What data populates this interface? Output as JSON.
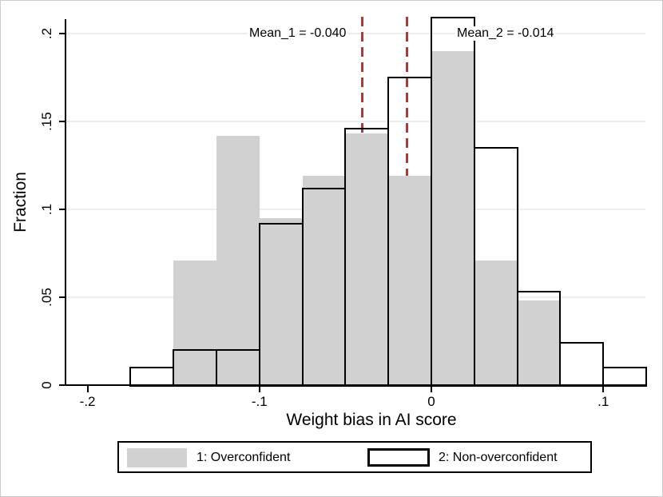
{
  "chart_data": {
    "type": "bar",
    "subtype": "overlaid-histogram",
    "title": "",
    "xlabel": "Weight bias in AI score",
    "ylabel": "Fraction",
    "xlim": [
      -0.2125,
      0.125
    ],
    "ylim": [
      0,
      0.21
    ],
    "grid": "horizontal-light",
    "bin_width": 0.025,
    "x_ticks": [
      {
        "value": -0.2,
        "label": "-.2"
      },
      {
        "value": -0.1,
        "label": "-.1"
      },
      {
        "value": 0,
        "label": "0"
      },
      {
        "value": 0.1,
        "label": ".1"
      }
    ],
    "y_ticks": [
      {
        "value": 0,
        "label": "0"
      },
      {
        "value": 0.05,
        "label": ".05"
      },
      {
        "value": 0.1,
        "label": ".1"
      },
      {
        "value": 0.15,
        "label": ".15"
      },
      {
        "value": 0.2,
        "label": ".2"
      }
    ],
    "series": [
      {
        "name": "1: Overconfident",
        "style": "filled",
        "fill_color": "#d1d1d1",
        "bins": [
          {
            "start": -0.15,
            "fraction": 0.071
          },
          {
            "start": -0.125,
            "fraction": 0.142
          },
          {
            "start": -0.1,
            "fraction": 0.095
          },
          {
            "start": -0.075,
            "fraction": 0.119
          },
          {
            "start": -0.05,
            "fraction": 0.143
          },
          {
            "start": -0.025,
            "fraction": 0.119
          },
          {
            "start": 0.0,
            "fraction": 0.19
          },
          {
            "start": 0.025,
            "fraction": 0.071
          },
          {
            "start": 0.05,
            "fraction": 0.048
          }
        ]
      },
      {
        "name": "2: Non-overconfident",
        "style": "hollow",
        "outline_color": "#000000",
        "bins": [
          {
            "start": -0.175,
            "fraction": 0.01
          },
          {
            "start": -0.15,
            "fraction": 0.02
          },
          {
            "start": -0.125,
            "fraction": 0.02
          },
          {
            "start": -0.1,
            "fraction": 0.092
          },
          {
            "start": -0.075,
            "fraction": 0.112
          },
          {
            "start": -0.05,
            "fraction": 0.146
          },
          {
            "start": -0.025,
            "fraction": 0.175
          },
          {
            "start": 0.0,
            "fraction": 0.209
          },
          {
            "start": 0.025,
            "fraction": 0.135
          },
          {
            "start": 0.05,
            "fraction": 0.053
          },
          {
            "start": 0.075,
            "fraction": 0.024
          },
          {
            "start": 0.1,
            "fraction": 0.01
          }
        ]
      }
    ],
    "mean_lines": [
      {
        "label": "Mean_1 = -0.040",
        "value": -0.04,
        "color": "#a33e3e"
      },
      {
        "label": "Mean_2 = -0.014",
        "value": -0.014,
        "color": "#a33e3e"
      }
    ]
  },
  "legend": {
    "items": [
      {
        "label": "1: Overconfident",
        "swatch": "filled-gray"
      },
      {
        "label": "2: Non-overconfident",
        "swatch": "hollow-outline"
      }
    ]
  }
}
